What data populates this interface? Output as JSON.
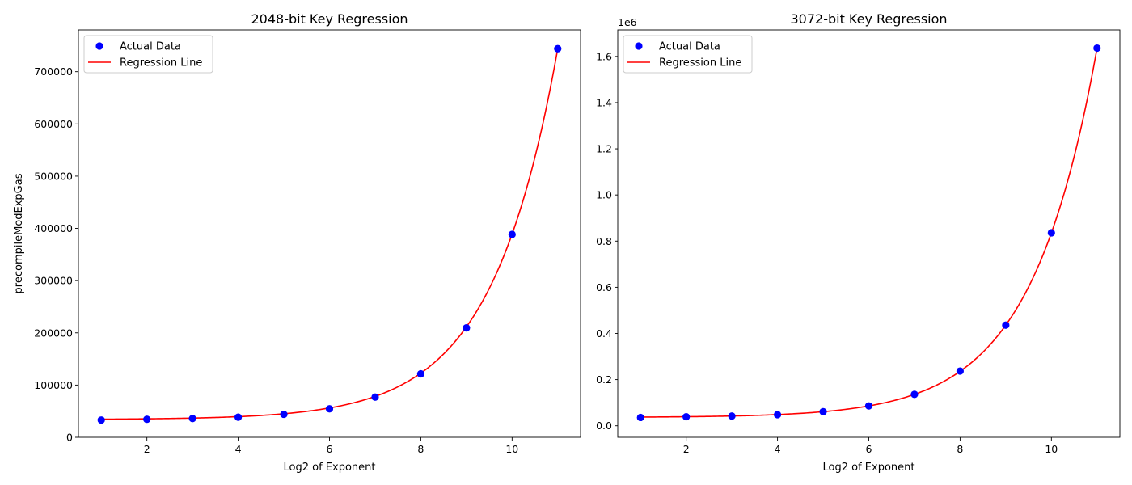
{
  "chart_data": [
    {
      "type": "scatter",
      "title": "2048-bit Key Regression",
      "xlabel": "Log2 of Exponent",
      "ylabel": "precompileModExpGas",
      "xlim": [
        0.5,
        11.5
      ],
      "ylim": [
        0,
        780000
      ],
      "xticks": [
        2,
        4,
        6,
        8,
        10
      ],
      "yticks": [
        0,
        100000,
        200000,
        300000,
        400000,
        500000,
        600000,
        700000
      ],
      "ytick_labels": [
        "0",
        "100000",
        "200000",
        "300000",
        "400000",
        "500000",
        "600000",
        "700000"
      ],
      "offset_label": "",
      "legend": {
        "position": "top-left",
        "entries": [
          "Actual Data",
          "Regression Line"
        ]
      },
      "grid": false,
      "series": [
        {
          "name": "Actual Data",
          "kind": "scatter",
          "color": "#0000ff",
          "x": [
            1,
            2,
            3,
            4,
            5,
            6,
            7,
            8,
            9,
            10,
            11
          ],
          "y": [
            33000,
            34500,
            36000,
            38500,
            44000,
            54500,
            77000,
            121500,
            209500,
            388500,
            744000
          ]
        },
        {
          "name": "Regression Line",
          "kind": "line",
          "color": "#ff0000",
          "model": {
            "a": 34000,
            "b": 710000,
            "base": 2,
            "shift": 11
          }
        }
      ]
    },
    {
      "type": "scatter",
      "title": "3072-bit Key Regression",
      "xlabel": "Log2 of Exponent",
      "ylabel": "",
      "xlim": [
        0.5,
        11.5
      ],
      "ylim": [
        -0.05,
        1.715
      ],
      "xticks": [
        2,
        4,
        6,
        8,
        10
      ],
      "yticks": [
        0.0,
        0.2,
        0.4,
        0.6,
        0.8,
        1.0,
        1.2,
        1.4,
        1.6
      ],
      "ytick_labels": [
        "0.0",
        "0.2",
        "0.4",
        "0.6",
        "0.8",
        "1.0",
        "1.2",
        "1.4",
        "1.6"
      ],
      "offset_label": "1e6",
      "legend": {
        "position": "top-left",
        "entries": [
          "Actual Data",
          "Regression Line"
        ]
      },
      "grid": false,
      "series": [
        {
          "name": "Actual Data",
          "kind": "scatter",
          "color": "#0000ff",
          "x": [
            1,
            2,
            3,
            4,
            5,
            6,
            7,
            8,
            9,
            10,
            11
          ],
          "y": [
            0.036,
            0.039,
            0.042,
            0.048,
            0.061,
            0.086,
            0.136,
            0.237,
            0.436,
            0.836,
            1.636
          ]
        },
        {
          "name": "Regression Line",
          "kind": "line",
          "color": "#ff0000",
          "model": {
            "a": 0.036,
            "b": 1.6,
            "base": 2,
            "shift": 11
          }
        }
      ]
    }
  ]
}
